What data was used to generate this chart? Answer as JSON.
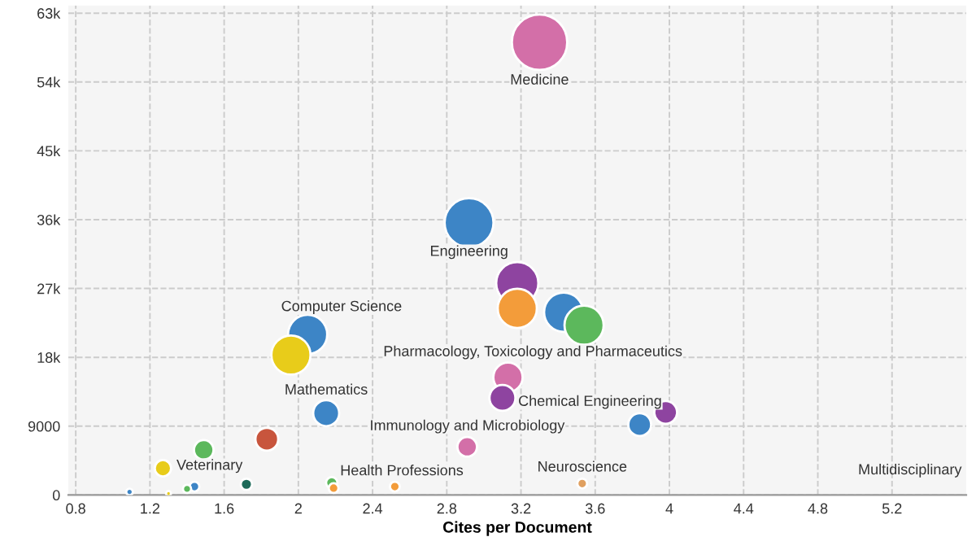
{
  "chart_data": {
    "type": "bubble",
    "xlabel": "Cites per Document",
    "x": [
      3.3,
      2.92,
      3.18,
      3.18,
      3.43,
      3.54,
      3.13,
      3.1,
      3.84,
      3.98,
      3.53,
      2.05,
      1.96,
      2.15,
      2.91,
      1.83,
      1.49,
      1.27,
      1.72,
      1.44,
      1.4,
      1.09,
      1.3,
      2.18,
      2.19,
      2.52
    ],
    "values": [
      59200,
      35600,
      27700,
      24400,
      23900,
      22200,
      15400,
      12700,
      9200,
      10800,
      1500,
      21000,
      18300,
      10700,
      6300,
      7300,
      5900,
      3500,
      1400,
      1100,
      800,
      400,
      200,
      1600,
      900,
      1100
    ],
    "sizes": [
      1,
      0.78,
      0.58,
      0.5,
      0.5,
      0.5,
      0.28,
      0.22,
      0.17,
      0.17,
      0.031,
      0.5,
      0.5,
      0.22,
      0.125,
      0.17,
      0.125,
      0.087,
      0.042,
      0.031,
      0.022,
      0.014,
      0.008,
      0.042,
      0.031,
      0.031
    ],
    "colors": [
      "#d36fa8",
      "#3d85c6",
      "#8e44a0",
      "#f39c3a",
      "#3d85c6",
      "#5cb85c",
      "#d36fa8",
      "#8e44a0",
      "#3d85c6",
      "#8e44a0",
      "#e0a060",
      "#3d85c6",
      "#e8cc1a",
      "#3d85c6",
      "#d36fa8",
      "#c8553d",
      "#5cb85c",
      "#e8cc1a",
      "#1e6b5a",
      "#3d85c6",
      "#5cb85c",
      "#3d85c6",
      "#e8cc1a",
      "#5cb85c",
      "#f39c3a",
      "#f39c3a"
    ],
    "annotations": [
      {
        "text": "Medicine",
        "x": 3.3,
        "y": 59200
      },
      {
        "text": "Engineering",
        "x": 2.92,
        "y": 35600
      },
      {
        "text": "Computer Science",
        "x": 2.05,
        "y": 21000
      },
      {
        "text": "Pharmacology, Toxicology and Pharmaceutics",
        "x": 3.13,
        "y": 15400
      },
      {
        "text": "Mathematics",
        "x": 2.15,
        "y": 10700
      },
      {
        "text": "Chemical Engineering",
        "x": 3.84,
        "y": 9200
      },
      {
        "text": "Immunology and Microbiology",
        "x": 2.91,
        "y": 6300
      },
      {
        "text": "Veterinary",
        "x": 1.27,
        "y": 3500
      },
      {
        "text": "Health Professions",
        "x": 2.18,
        "y": 1600
      },
      {
        "text": "Neuroscience",
        "x": 3.53,
        "y": 1500
      },
      "Multidisciplinary"
    ],
    "xlim": [
      0.76,
      5.6
    ],
    "ylim": [
      0,
      64000
    ],
    "xticks": [
      0.8,
      1.2,
      1.6,
      2,
      2.4,
      2.8,
      3.2,
      3.6,
      4,
      4.4,
      4.8,
      5.2
    ],
    "yticks": [
      0,
      {
        "value": 9000,
        "label": "9000"
      },
      {
        "value": 18000,
        "label": "18k"
      },
      {
        "value": 27000,
        "label": "27k"
      },
      {
        "value": 36000,
        "label": "36k"
      },
      {
        "value": 45000,
        "label": "45k"
      },
      {
        "value": 54000,
        "label": "54k"
      },
      {
        "value": 63000,
        "label": "63k"
      }
    ],
    "grid": true
  }
}
